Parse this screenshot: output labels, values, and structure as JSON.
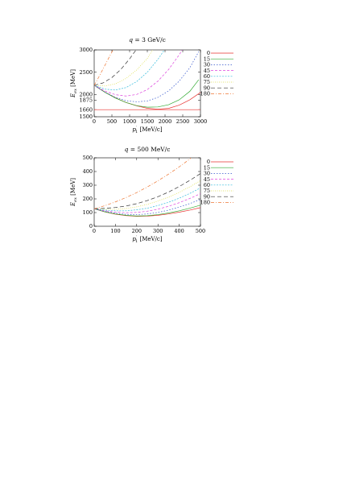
{
  "chart_data": [
    {
      "type": "line",
      "title": "q = 3 GeV/c",
      "xlabel": "p'_1 [MeV/c]",
      "ylabel": "E_{ex} [MeV]",
      "xlim": [
        0,
        3000
      ],
      "ylim": [
        1500,
        3000
      ],
      "x_ticks": [
        0,
        500,
        1000,
        1500,
        2000,
        2500,
        3000
      ],
      "y_ticks": [
        1500,
        1660,
        1875,
        2000,
        2500,
        3000
      ],
      "grid": false,
      "legend_position": "right",
      "reference_line": {
        "y": 1660
      },
      "series": [
        {
          "name": "0",
          "color": "#e8312f",
          "dash": "",
          "points": [
            [
              0,
              2205
            ],
            [
              300,
              2055
            ],
            [
              600,
              1925
            ],
            [
              900,
              1820
            ],
            [
              1200,
              1745
            ],
            [
              1500,
              1690
            ],
            [
              1800,
              1670
            ],
            [
              2100,
              1688
            ],
            [
              2400,
              1760
            ],
            [
              2700,
              1880
            ],
            [
              3000,
              2045
            ]
          ]
        },
        {
          "name": "15",
          "color": "#33aa33",
          "dash": "",
          "points": [
            [
              0,
              2205
            ],
            [
              300,
              2050
            ],
            [
              600,
              1920
            ],
            [
              900,
              1820
            ],
            [
              1200,
              1750
            ],
            [
              1500,
              1715
            ],
            [
              1800,
              1720
            ],
            [
              2100,
              1770
            ],
            [
              2400,
              1880
            ],
            [
              2700,
              2070
            ],
            [
              2950,
              2330
            ]
          ]
        },
        {
          "name": "30",
          "color": "#3355cc",
          "dash": "1.5,2",
          "points": [
            [
              0,
              2205
            ],
            [
              300,
              2055
            ],
            [
              600,
              1935
            ],
            [
              900,
              1860
            ],
            [
              1200,
              1835
            ],
            [
              1500,
              1855
            ],
            [
              1800,
              1935
            ],
            [
              2100,
              2080
            ],
            [
              2400,
              2300
            ],
            [
              2700,
              2600
            ],
            [
              2950,
              2960
            ]
          ]
        },
        {
          "name": "45",
          "color": "#dd44dd",
          "dash": "3,2",
          "points": [
            [
              0,
              2205
            ],
            [
              300,
              2080
            ],
            [
              600,
              1995
            ],
            [
              900,
              1965
            ],
            [
              1200,
              2000
            ],
            [
              1500,
              2110
            ],
            [
              1800,
              2300
            ],
            [
              2100,
              2560
            ],
            [
              2400,
              2890
            ],
            [
              2480,
              3000
            ]
          ]
        },
        {
          "name": "60",
          "color": "#33bbdd",
          "dash": "2,1.5",
          "points": [
            [
              0,
              2205
            ],
            [
              300,
              2120
            ],
            [
              600,
              2100
            ],
            [
              900,
              2155
            ],
            [
              1200,
              2290
            ],
            [
              1500,
              2500
            ],
            [
              1800,
              2790
            ],
            [
              1980,
              3000
            ]
          ]
        },
        {
          "name": "75",
          "color": "#dddd44",
          "dash": "1,1.5",
          "points": [
            [
              0,
              2205
            ],
            [
              300,
              2190
            ],
            [
              600,
              2240
            ],
            [
              900,
              2360
            ],
            [
              1200,
              2550
            ],
            [
              1500,
              2810
            ],
            [
              1650,
              3000
            ]
          ]
        },
        {
          "name": "90",
          "color": "#333333",
          "dash": "5,3",
          "points": [
            [
              0,
              2205
            ],
            [
              250,
              2260
            ],
            [
              500,
              2380
            ],
            [
              750,
              2560
            ],
            [
              1000,
              2800
            ],
            [
              1180,
              3000
            ]
          ]
        },
        {
          "name": "180",
          "color": "#ee7733",
          "dash": "4,2,1,2",
          "points": [
            [
              0,
              2205
            ],
            [
              150,
              2420
            ],
            [
              300,
              2650
            ],
            [
              450,
              2880
            ],
            [
              530,
              3000
            ]
          ]
        }
      ]
    },
    {
      "type": "line",
      "title": "q = 500 MeV/c",
      "xlabel": "p'_1 [MeV/c]",
      "ylabel": "E_{ex} [MeV]",
      "xlim": [
        0,
        500
      ],
      "ylim": [
        0,
        500
      ],
      "x_ticks": [
        0,
        100,
        200,
        300,
        400,
        500
      ],
      "y_ticks": [
        0,
        100,
        200,
        300,
        400,
        500
      ],
      "grid": false,
      "legend_position": "right",
      "series": [
        {
          "name": "0",
          "color": "#e8312f",
          "dash": "",
          "points": [
            [
              0,
              128
            ],
            [
              50,
              105
            ],
            [
              100,
              88
            ],
            [
              150,
              78
            ],
            [
              200,
              73
            ],
            [
              250,
              74
            ],
            [
              300,
              80
            ],
            [
              350,
              90
            ],
            [
              400,
              103
            ],
            [
              450,
              118
            ],
            [
              500,
              136
            ]
          ]
        },
        {
          "name": "15",
          "color": "#33aa33",
          "dash": "",
          "points": [
            [
              0,
              128
            ],
            [
              50,
              106
            ],
            [
              100,
              90
            ],
            [
              150,
              80
            ],
            [
              200,
              75
            ],
            [
              250,
              77
            ],
            [
              300,
              85
            ],
            [
              350,
              97
            ],
            [
              400,
              113
            ],
            [
              450,
              132
            ],
            [
              500,
              154
            ]
          ]
        },
        {
          "name": "30",
          "color": "#3355cc",
          "dash": "1.5,2",
          "points": [
            [
              0,
              128
            ],
            [
              50,
              109
            ],
            [
              100,
              95
            ],
            [
              150,
              87
            ],
            [
              200,
              85
            ],
            [
              250,
              90
            ],
            [
              300,
              101
            ],
            [
              350,
              118
            ],
            [
              400,
              140
            ],
            [
              450,
              166
            ],
            [
              500,
              196
            ]
          ]
        },
        {
          "name": "45",
          "color": "#dd44dd",
          "dash": "3,2",
          "points": [
            [
              0,
              128
            ],
            [
              50,
              113
            ],
            [
              100,
              103
            ],
            [
              150,
              99
            ],
            [
              200,
              101
            ],
            [
              250,
              110
            ],
            [
              300,
              125
            ],
            [
              350,
              146
            ],
            [
              400,
              172
            ],
            [
              450,
              203
            ],
            [
              500,
              238
            ]
          ]
        },
        {
          "name": "60",
          "color": "#33bbdd",
          "dash": "2,1.5",
          "points": [
            [
              0,
              128
            ],
            [
              50,
              118
            ],
            [
              100,
              113
            ],
            [
              150,
              113
            ],
            [
              200,
              120
            ],
            [
              250,
              132
            ],
            [
              300,
              151
            ],
            [
              350,
              175
            ],
            [
              400,
              205
            ],
            [
              450,
              240
            ],
            [
              500,
              280
            ]
          ]
        },
        {
          "name": "75",
          "color": "#dddd44",
          "dash": "1,1.5",
          "points": [
            [
              0,
              128
            ],
            [
              50,
              124
            ],
            [
              100,
              124
            ],
            [
              150,
              130
            ],
            [
              200,
              142
            ],
            [
              250,
              160
            ],
            [
              300,
              184
            ],
            [
              350,
              213
            ],
            [
              400,
              248
            ],
            [
              450,
              288
            ],
            [
              500,
              333
            ]
          ]
        },
        {
          "name": "90",
          "color": "#333333",
          "dash": "5,3",
          "points": [
            [
              0,
              128
            ],
            [
              50,
              131
            ],
            [
              100,
              137
            ],
            [
              150,
              148
            ],
            [
              200,
              165
            ],
            [
              250,
              188
            ],
            [
              300,
              216
            ],
            [
              350,
              250
            ],
            [
              400,
              290
            ],
            [
              450,
              335
            ],
            [
              500,
              385
            ]
          ]
        },
        {
          "name": "180",
          "color": "#ee7733",
          "dash": "4,2,1,2",
          "points": [
            [
              0,
              128
            ],
            [
              50,
              150
            ],
            [
              100,
              178
            ],
            [
              150,
              210
            ],
            [
              200,
              246
            ],
            [
              250,
              287
            ],
            [
              300,
              332
            ],
            [
              350,
              381
            ],
            [
              400,
              434
            ],
            [
              450,
              491
            ],
            [
              455,
              500
            ]
          ]
        }
      ]
    }
  ]
}
